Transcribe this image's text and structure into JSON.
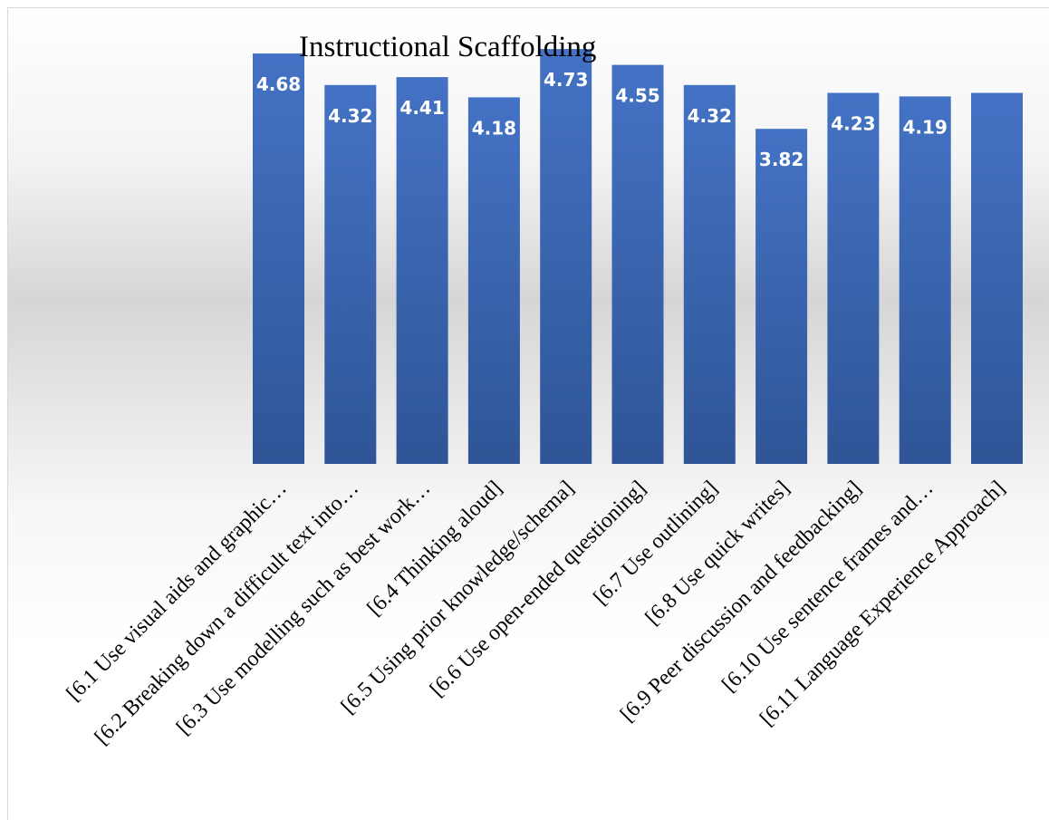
{
  "chart_data": {
    "type": "bar",
    "title": "Instructional Scaffolding",
    "xlabel": "",
    "ylabel": "",
    "ylim": [
      0,
      5
    ],
    "grid": false,
    "legend": "none",
    "categories": [
      "[6.1 Use visual aids and graphic…",
      "[6.2 Breaking down a difficult text into…",
      "[6.3 Use modelling such as best work…",
      "[6.4 Thinking aloud]",
      "[6.5 Using prior knowledge/schema]",
      "[6.6 Use open-ended questioning]",
      "[6.7 Use outlining]",
      "[6.8 Use quick writes]",
      "[6.9 Peer discussion and feedbacking]",
      "[6.10 Use sentence frames and…",
      "[6.11 Language Experience Approach]"
    ],
    "values": [
      4.68,
      4.32,
      4.41,
      4.18,
      4.73,
      4.55,
      4.32,
      3.82,
      4.23,
      4.19,
      4.23
    ],
    "data_labels": [
      "4.68",
      "4.32",
      "4.41",
      "4.18",
      "4.73",
      "4.55",
      "4.32",
      "3.82",
      "4.23",
      "4.19",
      ""
    ],
    "colors": {
      "bar_top": "#4472c4",
      "bar_bottom": "#2f5597",
      "label": "#ffffff"
    }
  }
}
